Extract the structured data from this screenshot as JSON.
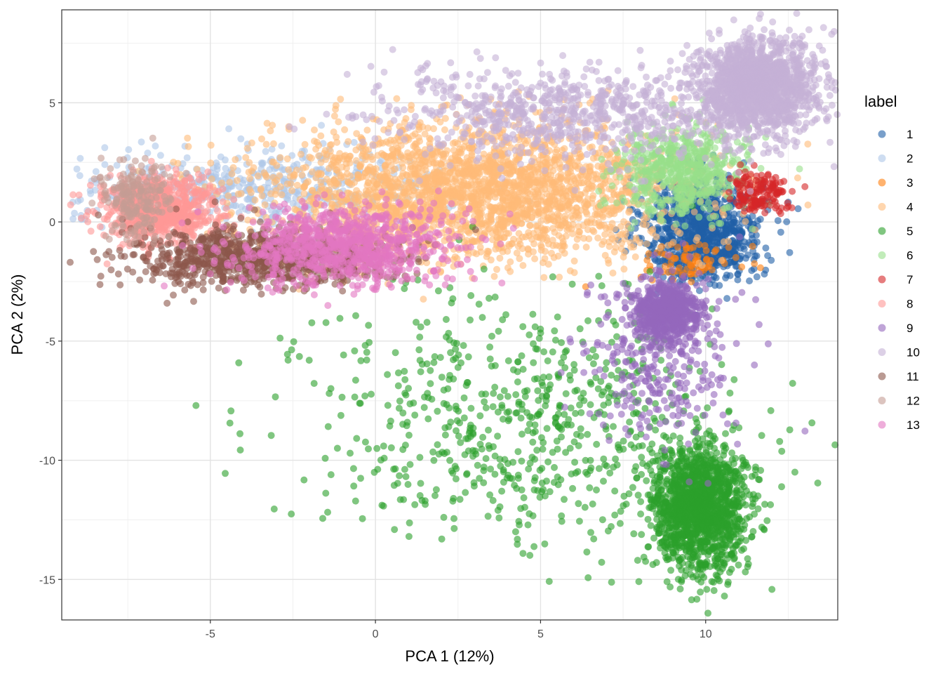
{
  "chart_data": {
    "type": "scatter",
    "xlabel": "PCA 1 (12%)",
    "ylabel": "PCA 2 (2%)",
    "xlim": [
      -9.5,
      14.0
    ],
    "ylim": [
      -16.7,
      8.9
    ],
    "x_ticks": [
      -5,
      0,
      5,
      10
    ],
    "y_ticks": [
      5,
      0,
      -5,
      -10,
      -15
    ],
    "grid": true,
    "point_opacity": 0.6,
    "legend": {
      "title": "label",
      "position": "right"
    },
    "series": [
      {
        "name": "1",
        "color": "#1f5fa6",
        "clusters": [
          {
            "cx": 9.9,
            "cy": -0.3,
            "sx": 0.9,
            "sy": 1.1,
            "n": 900
          }
        ]
      },
      {
        "name": "2",
        "color": "#aec7e8",
        "clusters": [
          {
            "cx": -3.5,
            "cy": 1.4,
            "sx": 2.8,
            "sy": 0.8,
            "n": 500
          }
        ]
      },
      {
        "name": "3",
        "color": "#ff7f0e",
        "clusters": [
          {
            "cx": 9.5,
            "cy": -1.6,
            "sx": 0.8,
            "sy": 0.4,
            "n": 80
          }
        ]
      },
      {
        "name": "4",
        "color": "#ffbb78",
        "clusters": [
          {
            "cx": 3.0,
            "cy": 1.3,
            "sx": 3.2,
            "sy": 1.4,
            "n": 2600
          }
        ]
      },
      {
        "name": "5",
        "color": "#2ca02c",
        "clusters": [
          {
            "cx": 9.8,
            "cy": -12.0,
            "sx": 0.7,
            "sy": 1.3,
            "n": 1500
          },
          {
            "cx": 4.5,
            "cy": -8.5,
            "sx": 3.4,
            "sy": 2.6,
            "n": 700
          }
        ]
      },
      {
        "name": "6",
        "color": "#98df8a",
        "clusters": [
          {
            "cx": 9.2,
            "cy": 2.2,
            "sx": 1.0,
            "sy": 0.9,
            "n": 600
          }
        ]
      },
      {
        "name": "7",
        "color": "#d62728",
        "clusters": [
          {
            "cx": 11.6,
            "cy": 1.2,
            "sx": 0.45,
            "sy": 0.4,
            "n": 150
          }
        ]
      },
      {
        "name": "8",
        "color": "#ff9896",
        "clusters": [
          {
            "cx": -6.5,
            "cy": 0.5,
            "sx": 0.9,
            "sy": 0.7,
            "n": 700
          }
        ]
      },
      {
        "name": "9",
        "color": "#9467bd",
        "clusters": [
          {
            "cx": 8.8,
            "cy": -3.7,
            "sx": 0.5,
            "sy": 0.6,
            "n": 600
          },
          {
            "cx": 8.5,
            "cy": -6.0,
            "sx": 1.2,
            "sy": 1.8,
            "n": 300
          }
        ]
      },
      {
        "name": "10",
        "color": "#c5b0d5",
        "clusters": [
          {
            "cx": 11.5,
            "cy": 5.7,
            "sx": 0.9,
            "sy": 1.0,
            "n": 1500
          },
          {
            "cx": 6.0,
            "cy": 4.5,
            "sx": 3.0,
            "sy": 1.0,
            "n": 800
          }
        ]
      },
      {
        "name": "11",
        "color": "#8c564b",
        "clusters": [
          {
            "cx": -3.5,
            "cy": -1.5,
            "sx": 2.0,
            "sy": 0.6,
            "n": 900
          }
        ]
      },
      {
        "name": "12",
        "color": "#c49c94",
        "clusters": [
          {
            "cx": -7.3,
            "cy": 1.0,
            "sx": 0.5,
            "sy": 0.8,
            "n": 200
          }
        ]
      },
      {
        "name": "13",
        "color": "#e377c2",
        "clusters": [
          {
            "cx": -1.0,
            "cy": -1.0,
            "sx": 1.6,
            "sy": 0.8,
            "n": 900
          }
        ]
      }
    ]
  }
}
